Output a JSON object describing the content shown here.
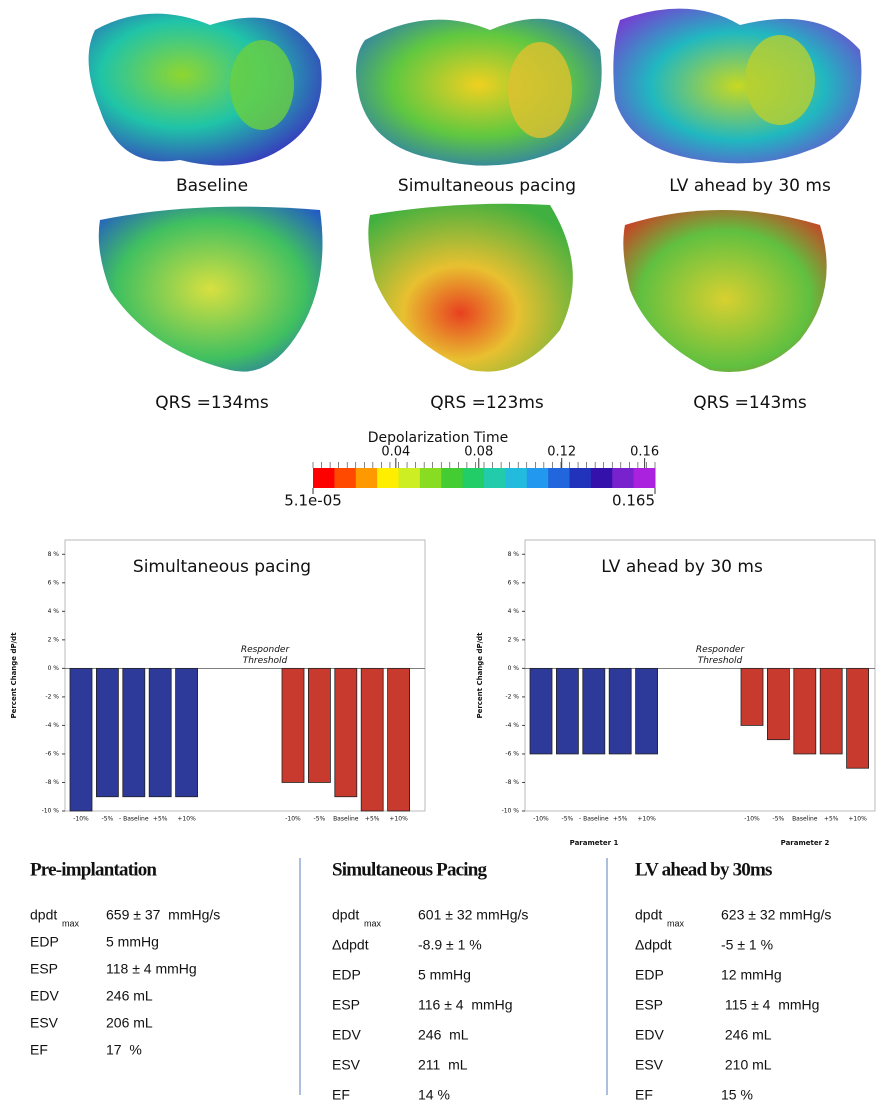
{
  "panels": [
    {
      "label": "Baseline",
      "qrs": "QRS =134ms"
    },
    {
      "label": "Simultaneous pacing",
      "qrs": "QRS =123ms"
    },
    {
      "label": "LV ahead by 30 ms",
      "qrs": "QRS =143ms"
    }
  ],
  "colorbar": {
    "title": "Depolarization Time",
    "range": [
      {
        "value": 5.1e-05,
        "label": "5.1e-05"
      },
      {
        "value": 0.165,
        "label": "0.165"
      }
    ],
    "ticks": [
      0.04,
      0.08,
      0.12,
      0.16
    ],
    "colors": [
      "#ff0000",
      "#ff4a00",
      "#ff9900",
      "#ffee00",
      "#ccee22",
      "#88dd22",
      "#44cc33",
      "#22cc66",
      "#22ccaa",
      "#22bbdd",
      "#2299ee",
      "#2266dd",
      "#2233bb",
      "#3311aa",
      "#7722cc",
      "#aa22dd"
    ]
  },
  "chart_data": [
    {
      "type": "bar",
      "title": "Simultaneous pacing",
      "ylabel": "Percent Change dP/dt",
      "annotation": "Responder Threshold",
      "ylim": [
        -10,
        9
      ],
      "yticks": [
        {
          "value": 8,
          "label": "8 %"
        },
        {
          "value": 6,
          "label": "6 %"
        },
        {
          "value": 4,
          "label": "4 %"
        },
        {
          "value": 2,
          "label": "2 %"
        },
        {
          "value": 0,
          "label": "0 %"
        },
        {
          "value": -2,
          "label": "-2 %"
        },
        {
          "value": -4,
          "label": "-4 %"
        },
        {
          "value": -6,
          "label": "-6 %"
        },
        {
          "value": -8,
          "label": "-8 %"
        },
        {
          "value": -10,
          "label": "-10 %"
        }
      ],
      "groups": [
        {
          "color": "#2e3a9a",
          "categories": [
            "-10%",
            "-5%",
            "- Baseline",
            "+5%",
            "+10%"
          ],
          "values": [
            -10,
            -9,
            -9,
            -9,
            -9
          ]
        },
        {
          "color": "#c93a2e",
          "categories": [
            "-10%",
            "-5%",
            "Baseline",
            "+5%",
            "+10%"
          ],
          "values": [
            -8,
            -8,
            -9,
            -10,
            -10
          ]
        }
      ]
    },
    {
      "type": "bar",
      "title": "LV ahead by 30 ms",
      "ylabel": "Percent Change dP/dt",
      "annotation": "Responder Threshold",
      "ylim": [
        -10,
        9
      ],
      "yticks": [
        {
          "value": 8,
          "label": "8 %"
        },
        {
          "value": 6,
          "label": "6 %"
        },
        {
          "value": 4,
          "label": "4 %"
        },
        {
          "value": 2,
          "label": "2 %"
        },
        {
          "value": 0,
          "label": "0 %"
        },
        {
          "value": -2,
          "label": "-2 %"
        },
        {
          "value": -4,
          "label": "-4 %"
        },
        {
          "value": -6,
          "label": "-6 %"
        },
        {
          "value": -8,
          "label": "-8 %"
        },
        {
          "value": -10,
          "label": "-10 %"
        }
      ],
      "groups": [
        {
          "name": "Parameter 1",
          "color": "#2e3a9a",
          "categories": [
            "-10%",
            "-5%",
            "- Baseline",
            "+5%",
            "+10%"
          ],
          "values": [
            -6,
            -6,
            -6,
            -6,
            -6
          ]
        },
        {
          "name": "Parameter 2",
          "color": "#c93a2e",
          "categories": [
            "-10%",
            "-5%",
            "Baseline",
            "+5%",
            "+10%"
          ],
          "values": [
            -4,
            -5,
            -6,
            -6,
            -7
          ]
        }
      ]
    }
  ],
  "tables": [
    {
      "title": "Pre-implantation",
      "rows": [
        {
          "label": "dpdt",
          "sub": "max",
          "value": "659 ± 37  mmHg/s"
        },
        {
          "label": "EDP",
          "value": "5 mmHg"
        },
        {
          "label": "ESP",
          "value": "118 ± 4 mmHg"
        },
        {
          "label": "EDV",
          "value": "246 mL"
        },
        {
          "label": "ESV",
          "value": "206 mL"
        },
        {
          "label": "EF",
          "value": "17  %"
        }
      ]
    },
    {
      "title": "Simultaneous Pacing",
      "rows": [
        {
          "label": "dpdt",
          "sub": "max",
          "value": "601 ± 32 mmHg/s"
        },
        {
          "label": "Δdpdt",
          "value": "-8.9 ± 1 %"
        },
        {
          "label": "EDP",
          "value": "5 mmHg"
        },
        {
          "label": "ESP",
          "value": "116 ± 4  mmHg"
        },
        {
          "label": "EDV",
          "value": "246  mL"
        },
        {
          "label": "ESV",
          "value": "211  mL"
        },
        {
          "label": "EF",
          "value": "14 %"
        }
      ]
    },
    {
      "title": "LV ahead by 30ms",
      "rows": [
        {
          "label": "dpdt",
          "sub": "max",
          "value": "623 ± 32 mmHg/s"
        },
        {
          "label": "Δdpdt",
          "value": "-5 ± 1 %"
        },
        {
          "label": "EDP",
          "value": "12 mmHg"
        },
        {
          "label": "ESP",
          "value": " 115 ± 4  mmHg"
        },
        {
          "label": "EDV",
          "value": " 246 mL"
        },
        {
          "label": "ESV",
          "value": " 210 mL"
        },
        {
          "label": "EF",
          "value": "15 %"
        }
      ]
    }
  ]
}
